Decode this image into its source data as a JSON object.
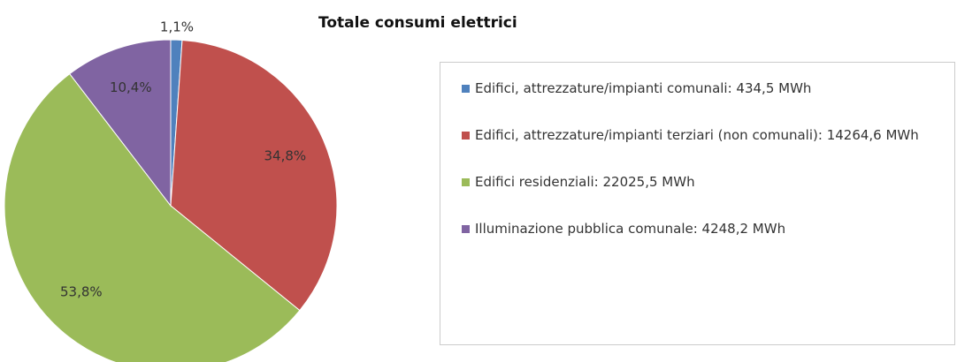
{
  "chart_data": {
    "type": "pie",
    "title": "Totale consumi elettrici",
    "categories": [
      "Edifici, attrezzature/impianti comunali: 434,5 MWh",
      "Edifici, attrezzature/impianti terziari (non comunali): 14264,6 MWh",
      "Edifici residenziali: 22025,5 MWh",
      "Illuminazione pubblica comunale: 4248,2 MWh"
    ],
    "values": [
      1.1,
      34.8,
      53.8,
      10.4
    ],
    "value_labels": [
      "1,1%",
      "34,8%",
      "53,8%",
      "10,4%"
    ],
    "colors": [
      "#4f81bd",
      "#c0504d",
      "#9bbb59",
      "#8064a2"
    ],
    "legend": "right"
  }
}
